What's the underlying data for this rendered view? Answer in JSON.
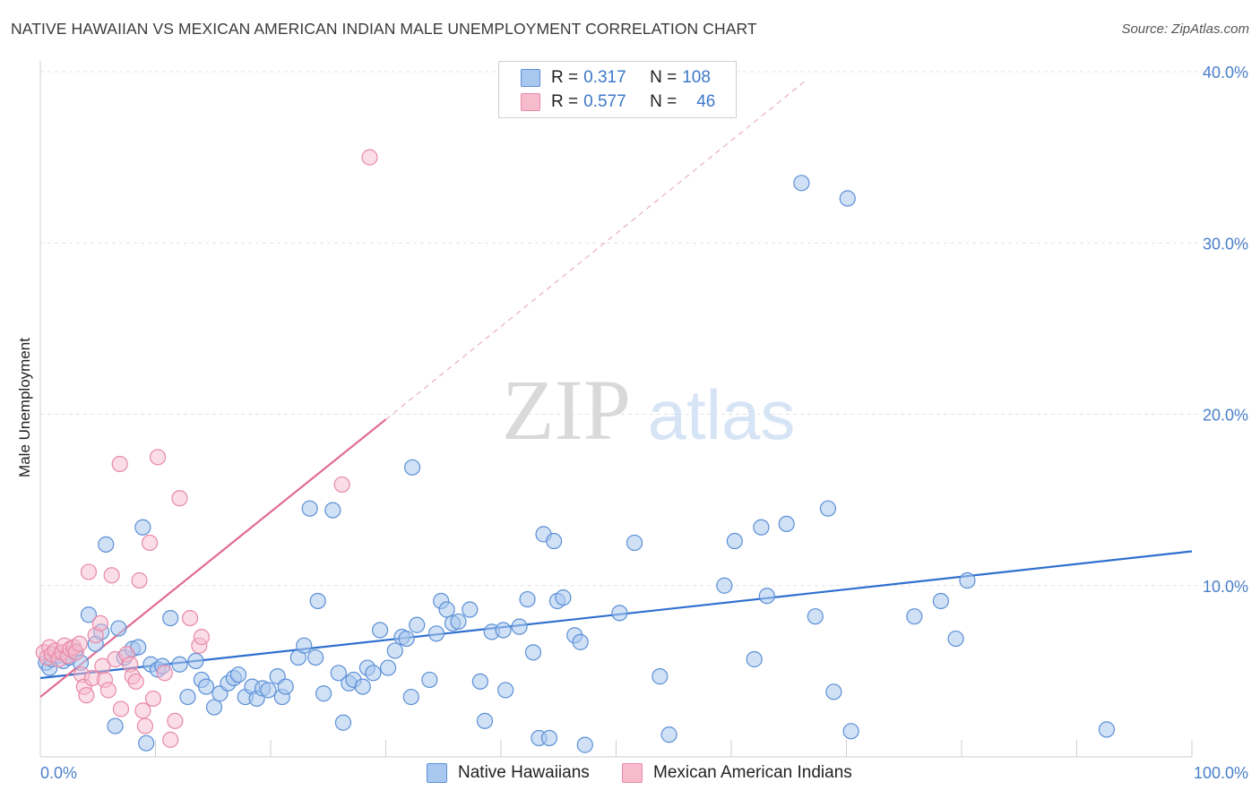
{
  "title": "NATIVE HAWAIIAN VS MEXICAN AMERICAN INDIAN MALE UNEMPLOYMENT CORRELATION CHART",
  "source": "Source: ZipAtlas.com",
  "watermark": {
    "zip": "ZIP",
    "atlas": "atlas"
  },
  "legend": {
    "row1": {
      "r_label": "R = ",
      "r_value": "0.317",
      "n_label": "N = ",
      "n_value": "108"
    },
    "row2": {
      "r_label": "R = ",
      "r_value": "0.577",
      "n_label": "N = ",
      "n_value": "46"
    }
  },
  "colors": {
    "blue_fill": "#a9c8ef",
    "blue_stroke": "#5b8fd6",
    "blue_line": "#2f6fcf",
    "pink_fill": "#f6bccd",
    "pink_stroke": "#e889a8",
    "pink_line": "#e26b93",
    "grid": "#e3e3e3",
    "tick_text": "#4a7fc9"
  },
  "chart_data": {
    "type": "scatter",
    "title": "NATIVE HAWAIIAN VS MEXICAN AMERICAN INDIAN MALE UNEMPLOYMENT CORRELATION CHART",
    "xlabel": "",
    "ylabel": "Male Unemployment",
    "xlim": [
      0,
      100
    ],
    "ylim": [
      0,
      40
    ],
    "x_tick_labels": [
      "0.0%",
      "100.0%"
    ],
    "y_ticks": [
      10,
      20,
      30,
      40
    ],
    "y_tick_labels": [
      "10.0%",
      "20.0%",
      "30.0%",
      "40.0%"
    ],
    "grid": true,
    "legend_position": "bottom",
    "series": [
      {
        "name": "Native Hawaiians",
        "color": "#a9c8ef",
        "r": 0.317,
        "n": 108,
        "trend": {
          "x": [
            0,
            100
          ],
          "y": [
            4.6,
            12.0
          ]
        },
        "points": [
          [
            0.5,
            5.5
          ],
          [
            0.8,
            5.2
          ],
          [
            1.0,
            5.7
          ],
          [
            1.5,
            5.9
          ],
          [
            2.0,
            5.6
          ],
          [
            2.5,
            5.8
          ],
          [
            3.0,
            6.2
          ],
          [
            3.5,
            5.5
          ],
          [
            4.2,
            8.3
          ],
          [
            4.8,
            6.6
          ],
          [
            5.3,
            7.3
          ],
          [
            5.7,
            12.4
          ],
          [
            6.5,
            1.8
          ],
          [
            6.8,
            7.5
          ],
          [
            7.3,
            5.8
          ],
          [
            8.0,
            6.3
          ],
          [
            8.5,
            6.4
          ],
          [
            8.9,
            13.4
          ],
          [
            9.2,
            0.8
          ],
          [
            9.6,
            5.4
          ],
          [
            10.2,
            5.1
          ],
          [
            10.6,
            5.3
          ],
          [
            11.3,
            8.1
          ],
          [
            12.1,
            5.4
          ],
          [
            12.8,
            3.5
          ],
          [
            13.5,
            5.6
          ],
          [
            14.0,
            4.5
          ],
          [
            14.4,
            4.1
          ],
          [
            15.1,
            2.9
          ],
          [
            15.6,
            3.7
          ],
          [
            16.3,
            4.3
          ],
          [
            16.8,
            4.6
          ],
          [
            17.2,
            4.8
          ],
          [
            17.8,
            3.5
          ],
          [
            18.4,
            4.1
          ],
          [
            18.8,
            3.4
          ],
          [
            19.3,
            4.0
          ],
          [
            19.8,
            3.9
          ],
          [
            20.6,
            4.7
          ],
          [
            21.0,
            3.5
          ],
          [
            21.3,
            4.1
          ],
          [
            22.4,
            5.8
          ],
          [
            22.9,
            6.5
          ],
          [
            23.4,
            14.5
          ],
          [
            23.9,
            5.8
          ],
          [
            24.1,
            9.1
          ],
          [
            24.6,
            3.7
          ],
          [
            25.4,
            14.4
          ],
          [
            25.9,
            4.9
          ],
          [
            26.3,
            2.0
          ],
          [
            26.8,
            4.3
          ],
          [
            27.2,
            4.5
          ],
          [
            28.0,
            4.1
          ],
          [
            28.4,
            5.2
          ],
          [
            28.9,
            4.9
          ],
          [
            29.5,
            7.4
          ],
          [
            30.2,
            5.2
          ],
          [
            30.8,
            6.2
          ],
          [
            31.4,
            7.0
          ],
          [
            31.8,
            6.9
          ],
          [
            32.2,
            3.5
          ],
          [
            32.7,
            7.7
          ],
          [
            32.3,
            16.9
          ],
          [
            33.8,
            4.5
          ],
          [
            34.4,
            7.2
          ],
          [
            34.8,
            9.1
          ],
          [
            35.3,
            8.6
          ],
          [
            35.8,
            7.8
          ],
          [
            36.3,
            7.9
          ],
          [
            37.3,
            8.6
          ],
          [
            38.2,
            4.4
          ],
          [
            38.6,
            2.1
          ],
          [
            39.2,
            7.3
          ],
          [
            40.2,
            7.4
          ],
          [
            40.4,
            3.9
          ],
          [
            41.6,
            7.6
          ],
          [
            42.3,
            9.2
          ],
          [
            42.8,
            6.1
          ],
          [
            43.3,
            1.1
          ],
          [
            43.7,
            13.0
          ],
          [
            44.2,
            1.1
          ],
          [
            44.6,
            12.6
          ],
          [
            44.9,
            9.1
          ],
          [
            45.4,
            9.3
          ],
          [
            46.4,
            7.1
          ],
          [
            46.9,
            6.7
          ],
          [
            47.3,
            0.7
          ],
          [
            50.3,
            8.4
          ],
          [
            51.6,
            12.5
          ],
          [
            53.8,
            4.7
          ],
          [
            54.6,
            1.3
          ],
          [
            59.4,
            10.0
          ],
          [
            60.3,
            12.6
          ],
          [
            62.0,
            5.7
          ],
          [
            62.6,
            13.4
          ],
          [
            63.1,
            9.4
          ],
          [
            64.8,
            13.6
          ],
          [
            66.1,
            33.5
          ],
          [
            67.3,
            8.2
          ],
          [
            68.4,
            14.5
          ],
          [
            68.9,
            3.8
          ],
          [
            70.1,
            32.6
          ],
          [
            70.4,
            1.5
          ],
          [
            75.9,
            8.2
          ],
          [
            78.2,
            9.1
          ],
          [
            79.5,
            6.9
          ],
          [
            80.5,
            10.3
          ],
          [
            92.6,
            1.6
          ]
        ]
      },
      {
        "name": "Mexican American Indians",
        "color": "#f6bccd",
        "r": 0.577,
        "n": 46,
        "trend": {
          "x": [
            0,
            30
          ],
          "y": [
            3.5,
            19.7
          ]
        },
        "trend_extension": {
          "x": [
            30,
            66.5
          ],
          "y": [
            19.7,
            39.5
          ]
        },
        "points": [
          [
            0.3,
            6.1
          ],
          [
            0.6,
            5.8
          ],
          [
            0.8,
            6.4
          ],
          [
            1.0,
            6.0
          ],
          [
            1.3,
            6.2
          ],
          [
            1.6,
            5.7
          ],
          [
            1.9,
            6.1
          ],
          [
            2.1,
            6.5
          ],
          [
            2.4,
            5.9
          ],
          [
            2.6,
            6.3
          ],
          [
            2.9,
            6.4
          ],
          [
            3.1,
            6.1
          ],
          [
            3.4,
            6.6
          ],
          [
            3.6,
            4.8
          ],
          [
            3.8,
            4.1
          ],
          [
            4.0,
            3.6
          ],
          [
            4.2,
            10.8
          ],
          [
            4.5,
            4.6
          ],
          [
            4.8,
            7.1
          ],
          [
            5.2,
            7.8
          ],
          [
            5.4,
            5.3
          ],
          [
            5.6,
            4.5
          ],
          [
            5.9,
            3.9
          ],
          [
            6.2,
            10.6
          ],
          [
            6.5,
            5.7
          ],
          [
            6.9,
            17.1
          ],
          [
            7.0,
            2.8
          ],
          [
            7.5,
            6.0
          ],
          [
            7.8,
            5.4
          ],
          [
            8.0,
            4.7
          ],
          [
            8.3,
            4.4
          ],
          [
            8.6,
            10.3
          ],
          [
            8.9,
            2.7
          ],
          [
            9.1,
            1.8
          ],
          [
            9.5,
            12.5
          ],
          [
            9.8,
            3.4
          ],
          [
            10.2,
            17.5
          ],
          [
            10.8,
            4.9
          ],
          [
            11.3,
            1.0
          ],
          [
            11.7,
            2.1
          ],
          [
            12.1,
            15.1
          ],
          [
            13.0,
            8.1
          ],
          [
            13.8,
            6.5
          ],
          [
            14.0,
            7.0
          ],
          [
            26.2,
            15.9
          ],
          [
            28.6,
            35.0
          ]
        ]
      }
    ]
  }
}
